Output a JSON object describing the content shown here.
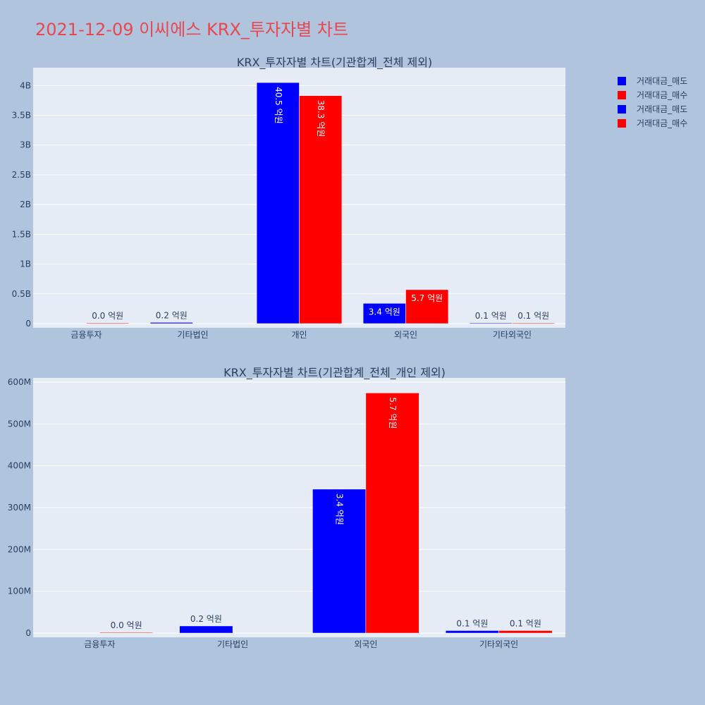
{
  "page_title": "2021-12-09 이씨에스 KRX_투자자별 차트",
  "colors": {
    "sell": "#0000ff",
    "buy": "#ff0000",
    "plot_bg": "#e5ecf6",
    "page_bg": "#b0c4de",
    "title": "#e8474f"
  },
  "legend": [
    {
      "label": "거래대금_매도",
      "color": "#0000ff"
    },
    {
      "label": "거래대금_매수",
      "color": "#ff0000"
    },
    {
      "label": "거래대금_매도",
      "color": "#0000ff"
    },
    {
      "label": "거래대금_매수",
      "color": "#ff0000"
    }
  ],
  "chart_data": [
    {
      "type": "bar",
      "title": "KRX_투자자별 차트(기관합계_전체 제외)",
      "categories": [
        "금융투자",
        "기타법인",
        "개인",
        "외국인",
        "기타외국인"
      ],
      "ylim": [
        0,
        4300000000
      ],
      "yticks": [
        0,
        500000000,
        1000000000,
        1500000000,
        2000000000,
        2500000000,
        3000000000,
        3500000000,
        4000000000
      ],
      "ytick_labels": [
        "0",
        "0.5B",
        "1B",
        "1.5B",
        "2B",
        "2.5B",
        "3B",
        "3.5B",
        "4B"
      ],
      "series": [
        {
          "name": "거래대금_매도",
          "color": "#0000ff",
          "values": [
            null,
            20000000,
            4050000000,
            340000000,
            10000000
          ],
          "labels": [
            "",
            "0.2 억원",
            "40.5 억원",
            "3.4 억원",
            "0.1 억원"
          ]
        },
        {
          "name": "거래대금_매수",
          "color": "#ff0000",
          "values": [
            2000000,
            null,
            3830000000,
            570000000,
            10000000
          ],
          "labels": [
            "0.0 억원",
            "",
            "38.3 억원",
            "5.7 억원",
            "0.1 억원"
          ]
        }
      ]
    },
    {
      "type": "bar",
      "title": "KRX_투자자별 차트(기관합계_전체_개인 제외)",
      "categories": [
        "금융투자",
        "기타법인",
        "외국인",
        "기타외국인"
      ],
      "ylim": [
        0,
        610000000
      ],
      "yticks": [
        0,
        100000000,
        200000000,
        300000000,
        400000000,
        500000000,
        600000000
      ],
      "ytick_labels": [
        "0",
        "100M",
        "200M",
        "300M",
        "400M",
        "500M",
        "600M"
      ],
      "series": [
        {
          "name": "거래대금_매도",
          "color": "#0000ff",
          "values": [
            null,
            17000000,
            344000000,
            6000000
          ],
          "labels": [
            "",
            "0.2 억원",
            "3.4 억원",
            "0.1 억원"
          ]
        },
        {
          "name": "거래대금_매수",
          "color": "#ff0000",
          "values": [
            1500000,
            null,
            574000000,
            6000000
          ],
          "labels": [
            "0.0 억원",
            "",
            "5.7 억원",
            "0.1 억원"
          ]
        }
      ]
    }
  ]
}
